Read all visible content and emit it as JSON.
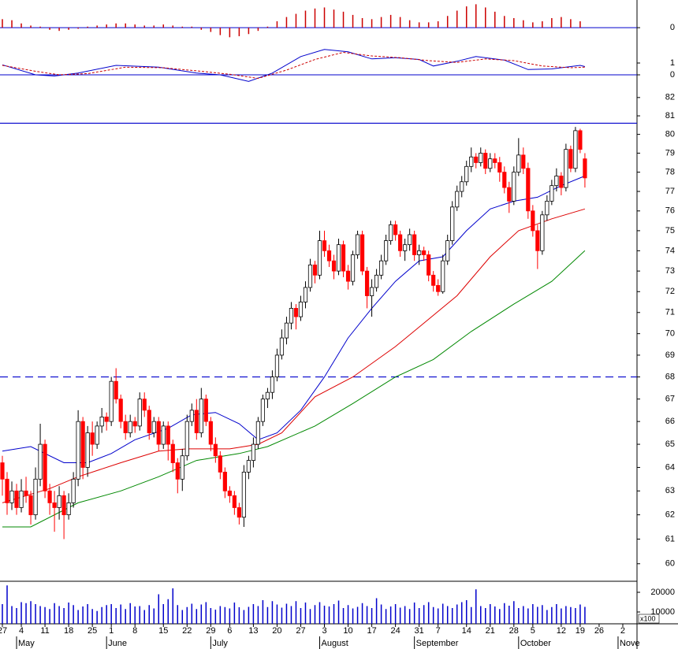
{
  "chart_data": [
    {
      "type": "bar",
      "color": "#cc0000",
      "zero_line_color": "#0000cc",
      "xlim": [
        -0.5,
        134
      ],
      "ylim": [
        -0.55,
        1.3
      ],
      "yticks": [
        0
      ],
      "x": [
        0,
        2,
        4,
        6,
        8,
        10,
        12,
        14,
        16,
        18,
        20,
        22,
        24,
        26,
        28,
        30,
        32,
        34,
        36,
        38,
        40,
        42,
        44,
        46,
        48,
        50,
        52,
        54,
        56,
        58,
        60,
        62,
        64,
        66,
        68,
        70,
        72,
        74,
        76,
        78,
        80,
        82,
        84,
        86,
        88,
        90,
        92,
        94,
        96,
        98,
        100,
        102,
        104,
        106,
        108,
        110,
        112,
        114,
        116,
        118,
        120,
        122
      ],
      "values": [
        0.4,
        0.35,
        0.2,
        0.1,
        0.05,
        -0.1,
        -0.15,
        -0.1,
        -0.05,
        0.05,
        0.1,
        0.15,
        0.2,
        0.2,
        0.15,
        0.1,
        0.1,
        0.15,
        0.1,
        0.05,
        0.05,
        -0.1,
        -0.2,
        -0.35,
        -0.45,
        -0.4,
        -0.3,
        -0.15,
        0.05,
        0.3,
        0.5,
        0.65,
        0.8,
        0.9,
        0.95,
        0.85,
        0.75,
        0.6,
        0.45,
        0.4,
        0.5,
        0.6,
        0.5,
        0.35,
        0.25,
        0.25,
        0.3,
        0.55,
        0.8,
        1.0,
        1.1,
        0.95,
        0.75,
        0.55,
        0.45,
        0.35,
        0.25,
        0.3,
        0.45,
        0.5,
        0.4,
        0.3
      ]
    },
    {
      "type": "line",
      "zero_line_color": "#0000cc",
      "xlim": [
        -0.5,
        134
      ],
      "ylim": [
        -1,
        3
      ],
      "yticks": [
        0,
        1
      ],
      "series": [
        {
          "color": "#0000cc",
          "dashed": false,
          "x": [
            0,
            7,
            11,
            16,
            24,
            33,
            41,
            46,
            52,
            57,
            63,
            68,
            73,
            78,
            83,
            88,
            91,
            96,
            100,
            106,
            111,
            116,
            122,
            123
          ],
          "values": [
            0.85,
            0.0,
            -0.1,
            0.15,
            0.8,
            0.65,
            0.15,
            0.0,
            -0.55,
            0.15,
            1.55,
            2.15,
            1.95,
            1.35,
            1.45,
            1.3,
            0.75,
            1.15,
            1.55,
            1.25,
            0.45,
            0.5,
            0.8,
            0.7
          ]
        },
        {
          "color": "#cc0000",
          "dashed": true,
          "x": [
            0,
            7,
            12,
            18,
            26,
            34,
            42,
            48,
            54,
            60,
            66,
            72,
            78,
            84,
            90,
            96,
            102,
            108,
            114,
            120,
            123
          ],
          "values": [
            0.8,
            0.3,
            0.0,
            0.1,
            0.65,
            0.6,
            0.3,
            0.05,
            -0.3,
            0.4,
            1.3,
            1.9,
            1.6,
            1.45,
            1.2,
            1.05,
            1.35,
            1.2,
            0.75,
            0.6,
            0.65
          ]
        }
      ]
    },
    {
      "type": "candlestick",
      "up_color": "#ffffff",
      "down_color": "#ff0000",
      "log_scale": true,
      "xlim": [
        -0.5,
        134
      ],
      "ylim": [
        59.3,
        82.6
      ],
      "yticks": [
        60,
        61,
        62,
        63,
        64,
        65,
        66,
        67,
        68,
        69,
        70,
        71,
        72,
        73,
        74,
        75,
        76,
        77,
        78,
        79,
        80,
        81,
        82
      ],
      "hlines": [
        {
          "value": 80.6,
          "color": "#0000cc",
          "dashed": false
        },
        {
          "value": 68,
          "color": "#0000cc",
          "dashed": true
        }
      ],
      "open": [
        64.2,
        63.5,
        62.5,
        63.0,
        62.3,
        63.0,
        62.8,
        62.0,
        63.5,
        65.0,
        63.0,
        62.5,
        62.3,
        62.8,
        62.0,
        62.5,
        63.5,
        66.0,
        64.0,
        65.5,
        65.0,
        65.8,
        66.2,
        66.0,
        67.8,
        67.0,
        66.0,
        65.5,
        66.0,
        65.8,
        67.0,
        66.5,
        65.5,
        66.0,
        65.0,
        65.8,
        65.0,
        64.2,
        63.5,
        64.5,
        66.0,
        66.5,
        65.5,
        67.0,
        66.0,
        65.0,
        64.5,
        63.8,
        63.0,
        62.8,
        62.3,
        61.9,
        63.8,
        64.3,
        65.0,
        66.0,
        67.0,
        67.3,
        68.0,
        69.0,
        69.8,
        70.5,
        71.2,
        70.8,
        71.5,
        72.2,
        73.3,
        72.8,
        74.5,
        74.0,
        73.5,
        73.0,
        74.3,
        73.0,
        72.5,
        73.8,
        74.8,
        73.0,
        71.8,
        72.2,
        72.8,
        73.5,
        74.5,
        75.3,
        74.8,
        74.0,
        74.3,
        74.8,
        73.8,
        74.0,
        73.8,
        72.8,
        72.3,
        72.0,
        73.5,
        74.5,
        76.2,
        77.0,
        77.5,
        78.3,
        78.8,
        78.5,
        79.0,
        78.2,
        78.7,
        78.5,
        78.0,
        77.2,
        76.5,
        78.0,
        78.9,
        78.2,
        76.0,
        75.0,
        74.0,
        75.8,
        76.5,
        77.3,
        77.8,
        77.2,
        79.2,
        78.2,
        80.2,
        78.7
      ],
      "high": [
        64.5,
        63.8,
        63.4,
        63.3,
        63.5,
        63.6,
        63.0,
        64.0,
        65.9,
        65.2,
        63.3,
        63.0,
        63.2,
        63.0,
        62.9,
        63.8,
        66.5,
        66.2,
        65.8,
        66.0,
        66.0,
        66.6,
        66.4,
        68.0,
        68.4,
        67.2,
        66.3,
        66.3,
        66.2,
        67.3,
        67.3,
        66.7,
        66.2,
        66.2,
        66.0,
        66.0,
        65.2,
        64.4,
        64.8,
        66.3,
        66.8,
        67.0,
        67.5,
        67.2,
        66.2,
        65.3,
        64.7,
        64.0,
        63.2,
        63.0,
        62.5,
        64.1,
        64.5,
        65.3,
        66.2,
        67.2,
        67.5,
        68.3,
        69.3,
        70.2,
        70.8,
        71.5,
        71.4,
        71.8,
        72.5,
        73.6,
        73.5,
        75.0,
        75.0,
        74.3,
        73.8,
        74.6,
        74.5,
        73.3,
        74.0,
        75.0,
        75.0,
        73.2,
        72.6,
        73.1,
        73.8,
        74.8,
        75.5,
        75.5,
        75.0,
        74.6,
        75.1,
        75.0,
        74.3,
        74.2,
        74.0,
        73.0,
        72.6,
        73.8,
        74.8,
        76.5,
        77.3,
        77.8,
        78.6,
        79.3,
        79.0,
        79.3,
        79.2,
        79.0,
        79.0,
        78.8,
        78.3,
        77.5,
        78.3,
        79.8,
        79.3,
        78.5,
        76.3,
        75.3,
        76.0,
        76.8,
        77.6,
        78.2,
        78.0,
        79.5,
        79.4,
        80.4,
        80.3,
        79.0
      ],
      "low": [
        62.8,
        62.0,
        62.2,
        62.0,
        62.1,
        62.5,
        61.6,
        61.8,
        63.2,
        62.7,
        62.0,
        61.3,
        61.8,
        61.0,
        61.8,
        62.3,
        63.2,
        63.5,
        63.6,
        64.5,
        64.8,
        65.5,
        65.6,
        65.8,
        66.8,
        65.7,
        65.2,
        65.3,
        65.5,
        65.6,
        66.2,
        65.2,
        65.3,
        64.7,
        64.8,
        64.3,
        63.8,
        62.9,
        63.0,
        64.3,
        65.8,
        65.2,
        65.3,
        65.8,
        64.7,
        64.2,
        63.5,
        62.7,
        62.5,
        62.0,
        61.6,
        61.5,
        63.5,
        64.0,
        64.8,
        65.8,
        66.6,
        67.0,
        67.8,
        68.8,
        69.5,
        70.2,
        70.2,
        70.6,
        71.2,
        72.0,
        72.4,
        72.6,
        73.7,
        73.2,
        72.6,
        72.8,
        72.7,
        72.1,
        72.3,
        73.6,
        72.8,
        71.2,
        70.8,
        72.0,
        72.6,
        73.3,
        74.3,
        74.5,
        73.7,
        73.5,
        74.0,
        73.5,
        73.3,
        73.5,
        72.5,
        72.0,
        71.8,
        71.9,
        73.3,
        74.3,
        76.0,
        76.7,
        77.3,
        78.0,
        78.2,
        78.3,
        77.9,
        78.0,
        78.2,
        77.5,
        76.9,
        75.9,
        76.3,
        77.8,
        77.9,
        75.6,
        74.7,
        73.1,
        73.8,
        75.5,
        76.3,
        77.0,
        76.8,
        77.0,
        78.0,
        78.0,
        79.0,
        77.2
      ],
      "close": [
        63.5,
        62.5,
        63.0,
        62.3,
        63.0,
        62.8,
        62.0,
        63.5,
        65.0,
        63.0,
        62.5,
        62.3,
        62.8,
        62.0,
        62.5,
        63.5,
        66.0,
        64.0,
        65.5,
        65.0,
        65.8,
        66.2,
        66.0,
        67.8,
        67.0,
        66.0,
        65.5,
        66.0,
        65.8,
        67.0,
        66.5,
        65.5,
        66.0,
        65.0,
        65.8,
        65.0,
        64.2,
        63.5,
        64.5,
        66.0,
        66.5,
        65.5,
        67.0,
        66.0,
        65.0,
        64.5,
        63.8,
        63.0,
        62.8,
        62.3,
        61.9,
        63.8,
        64.3,
        65.0,
        66.0,
        67.0,
        67.3,
        68.0,
        69.0,
        69.8,
        70.5,
        71.2,
        70.8,
        71.5,
        72.2,
        73.3,
        72.8,
        74.5,
        74.0,
        73.5,
        73.0,
        74.3,
        73.0,
        72.5,
        73.8,
        74.8,
        73.0,
        71.8,
        72.2,
        72.8,
        73.5,
        74.5,
        75.3,
        74.8,
        74.0,
        74.3,
        74.8,
        73.8,
        74.0,
        73.8,
        72.8,
        72.3,
        72.0,
        73.5,
        74.5,
        76.2,
        77.0,
        77.5,
        78.3,
        78.8,
        78.5,
        79.0,
        78.2,
        78.7,
        78.5,
        78.0,
        77.2,
        76.5,
        78.0,
        78.9,
        78.2,
        76.0,
        75.0,
        74.0,
        75.8,
        76.5,
        77.3,
        77.8,
        77.2,
        79.2,
        78.2,
        80.2,
        79.2,
        77.7
      ],
      "series": [
        {
          "color": "#0000cc",
          "x": [
            0,
            6,
            13,
            18,
            23,
            28,
            35,
            40,
            45,
            50,
            54,
            58,
            63,
            68,
            73,
            78,
            83,
            88,
            93,
            98,
            103,
            108,
            113,
            118,
            123
          ],
          "values": [
            64.7,
            64.9,
            64.2,
            64.2,
            64.6,
            65.2,
            65.7,
            66.3,
            66.4,
            65.9,
            65.2,
            65.5,
            66.5,
            68.0,
            69.8,
            71.2,
            72.5,
            73.5,
            73.7,
            75.0,
            76.1,
            76.5,
            76.7,
            77.3,
            77.8
          ]
        },
        {
          "color": "#dd0000",
          "x": [
            0,
            10,
            16,
            25,
            33,
            39,
            48,
            54,
            59,
            66,
            74,
            83,
            89,
            96,
            103,
            109,
            116,
            123
          ],
          "values": [
            62.5,
            63.1,
            63.6,
            64.2,
            64.7,
            64.8,
            64.8,
            65.0,
            65.5,
            67.1,
            68.0,
            69.4,
            70.5,
            71.8,
            73.7,
            75.0,
            75.6,
            76.1
          ]
        },
        {
          "color": "#008800",
          "x": [
            0,
            6,
            16,
            25,
            33,
            41,
            50,
            56,
            66,
            74,
            83,
            91,
            99,
            108,
            116,
            123
          ],
          "values": [
            61.5,
            61.5,
            62.5,
            63.0,
            63.6,
            64.3,
            64.6,
            64.9,
            65.8,
            66.8,
            68.0,
            68.8,
            70.1,
            71.4,
            72.5,
            74.0
          ]
        }
      ]
    },
    {
      "type": "bar",
      "color": "#0000cc",
      "xlim": [
        -0.5,
        134
      ],
      "ylim": [
        4000,
        25600
      ],
      "yticks": [
        10000,
        20000
      ],
      "ylabel": "x100",
      "values": [
        14000,
        23500,
        13000,
        12000,
        15000,
        14500,
        15500,
        14000,
        13000,
        12500,
        11500,
        14500,
        13000,
        12000,
        14800,
        13500,
        11000,
        12800,
        14000,
        11500,
        10500,
        12500,
        13500,
        14000,
        12000,
        13800,
        11500,
        14500,
        12800,
        13000,
        11000,
        13500,
        11800,
        19000,
        14000,
        16500,
        22000,
        13500,
        11000,
        12500,
        14200,
        11500,
        13800,
        15000,
        12000,
        11200,
        13000,
        12500,
        11800,
        14800,
        12400,
        11000,
        12600,
        14000,
        13000,
        16000,
        12500,
        15500,
        13800,
        12200,
        14200,
        13000,
        15500,
        12000,
        14800,
        11500,
        13500,
        15000,
        13200,
        12800,
        14000,
        15800,
        12000,
        13500,
        11800,
        12600,
        14500,
        13000,
        12000,
        17000,
        13800,
        11500,
        12800,
        14000,
        12200,
        13000,
        11500,
        14800,
        12000,
        13500,
        15000,
        12500,
        11800,
        14200,
        13000,
        12000,
        13800,
        15000,
        16000,
        12500,
        21500,
        13000,
        12000,
        14000,
        12800,
        11500,
        14500,
        13200,
        15500,
        12000,
        13000,
        11800,
        14000,
        12600,
        13500,
        11000,
        12500,
        14000,
        11800,
        13000,
        12500,
        12000,
        13800,
        12600
      ],
      "xticks": [
        {
          "value": 0,
          "label": "27"
        },
        {
          "value": 4,
          "label": "4"
        },
        {
          "value": 9,
          "label": "11"
        },
        {
          "value": 14,
          "label": "18"
        },
        {
          "value": 19,
          "label": "25"
        },
        {
          "value": 23,
          "label": "1"
        },
        {
          "value": 28,
          "label": "8"
        },
        {
          "value": 34,
          "label": "15"
        },
        {
          "value": 39,
          "label": "22"
        },
        {
          "value": 44,
          "label": "29"
        },
        {
          "value": 48,
          "label": "6"
        },
        {
          "value": 53,
          "label": "13"
        },
        {
          "value": 58,
          "label": "20"
        },
        {
          "value": 63,
          "label": "27"
        },
        {
          "value": 68,
          "label": "3"
        },
        {
          "value": 73,
          "label": "10"
        },
        {
          "value": 78,
          "label": "17"
        },
        {
          "value": 83,
          "label": "24"
        },
        {
          "value": 88,
          "label": "31"
        },
        {
          "value": 92,
          "label": "7"
        },
        {
          "value": 98,
          "label": "14"
        },
        {
          "value": 103,
          "label": "21"
        },
        {
          "value": 108,
          "label": "28"
        },
        {
          "value": 112,
          "label": "5"
        },
        {
          "value": 118,
          "label": "12"
        },
        {
          "value": 122,
          "label": "19"
        },
        {
          "value": 126,
          "label": "26"
        },
        {
          "value": 131,
          "label": "2"
        }
      ],
      "month_ticks": [
        {
          "value": 3,
          "label": "May"
        },
        {
          "value": 22,
          "label": "June"
        },
        {
          "value": 44,
          "label": "July"
        },
        {
          "value": 67,
          "label": "August"
        },
        {
          "value": 87,
          "label": "September"
        },
        {
          "value": 109,
          "label": "October"
        },
        {
          "value": 130,
          "label": "Nove"
        }
      ]
    }
  ]
}
